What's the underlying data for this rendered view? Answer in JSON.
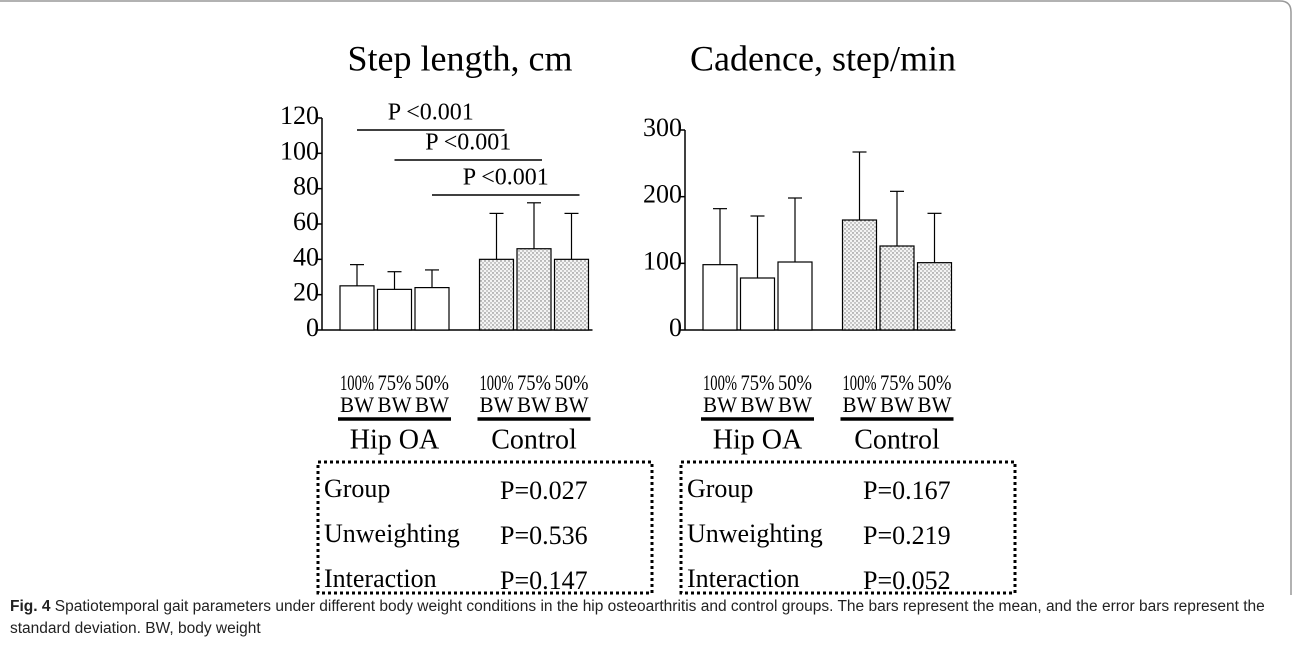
{
  "chart_data": [
    {
      "type": "bar",
      "title": "Step length, cm",
      "categories": [
        [
          "100%",
          "BW"
        ],
        [
          "75%",
          "BW"
        ],
        [
          "50%",
          "BW"
        ],
        [
          "100%",
          "BW"
        ],
        [
          "75%",
          "BW"
        ],
        [
          "50%",
          "BW"
        ]
      ],
      "groups": [
        "Hip OA",
        "Control"
      ],
      "group_patterns": [
        "none",
        "dots"
      ],
      "values": [
        25,
        23,
        24,
        40,
        46,
        40
      ],
      "errors": [
        12,
        10,
        10,
        26,
        26,
        26
      ],
      "ylim": [
        0,
        120
      ],
      "yticks": [
        0,
        20,
        40,
        60,
        80,
        100,
        120
      ],
      "significance": [
        {
          "label": "P <0.001",
          "from": 0,
          "to": 3
        },
        {
          "label": "P <0.001",
          "from": 1,
          "to": 4
        },
        {
          "label": "P <0.001",
          "from": 2,
          "to": 5
        }
      ],
      "stats": [
        [
          "Group",
          "P=0.027"
        ],
        [
          "Unweighting",
          "P=0.536"
        ],
        [
          "Interaction",
          "P=0.147"
        ]
      ]
    },
    {
      "type": "bar",
      "title": "Cadence, step/min",
      "categories": [
        [
          "100%",
          "BW"
        ],
        [
          "75%",
          "BW"
        ],
        [
          "50%",
          "BW"
        ],
        [
          "100%",
          "BW"
        ],
        [
          "75%",
          "BW"
        ],
        [
          "50%",
          "BW"
        ]
      ],
      "groups": [
        "Hip OA",
        "Control"
      ],
      "group_patterns": [
        "none",
        "dots"
      ],
      "values": [
        98,
        78,
        102,
        165,
        126,
        101
      ],
      "errors": [
        84,
        93,
        96,
        102,
        82,
        74
      ],
      "ylim": [
        0,
        300
      ],
      "yticks": [
        0,
        100,
        200,
        300
      ],
      "stats": [
        [
          "Group",
          "P=0.167"
        ],
        [
          "Unweighting",
          "P=0.219"
        ],
        [
          "Interaction",
          "P=0.052"
        ]
      ]
    }
  ],
  "caption": {
    "label": "Fig. 4",
    "text": "Spatiotemporal gait parameters under different body weight conditions in the hip osteoarthritis and control groups. The bars represent the mean, and the error bars represent the standard deviation. BW, body weight"
  }
}
